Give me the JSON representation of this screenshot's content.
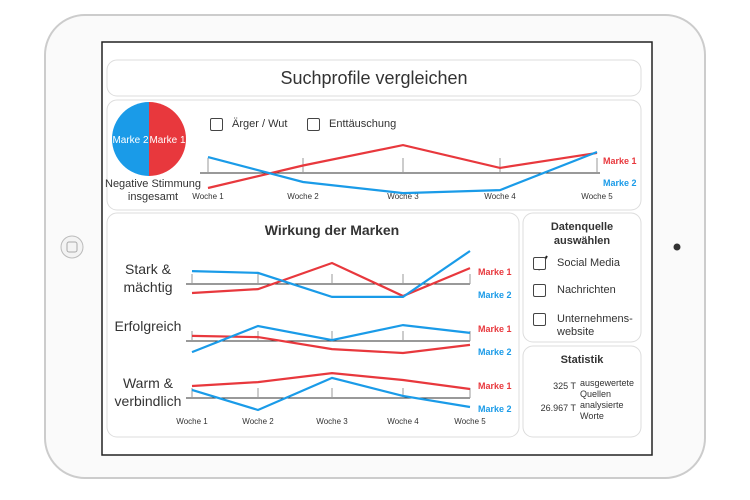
{
  "header": {
    "title": "Suchprofile vergleichen"
  },
  "top_panel": {
    "pie": {
      "type": "pie",
      "caption": "Negative Stimmung insgesamt",
      "slices": [
        {
          "name": "Marke 1",
          "value": 50,
          "color": "#e8383d"
        },
        {
          "name": "Marke 2",
          "value": 50,
          "color": "#1a9be8"
        }
      ]
    },
    "filters": [
      {
        "label": "Ärger / Wut",
        "checked": false
      },
      {
        "label": "Enttäuschung",
        "checked": false
      }
    ],
    "chart": {
      "type": "line",
      "categories": [
        "Woche 1",
        "Woche 2",
        "Woche 3",
        "Woche 4",
        "Woche 5"
      ],
      "ylim": [
        -1,
        1
      ],
      "series": [
        {
          "name": "Marke 1",
          "color": "#e8383d",
          "values": [
            -0.5,
            0.25,
            0.93,
            0.17,
            0.67
          ]
        },
        {
          "name": "Marke 2",
          "color": "#1a9be8",
          "values": [
            0.53,
            -0.3,
            -0.67,
            -0.57,
            0.7
          ]
        }
      ]
    }
  },
  "impact_panel": {
    "title": "Wirkung der Marken",
    "categories": [
      "Woche 1",
      "Woche 2",
      "Woche 3",
      "Woche 4",
      "Woche 5"
    ],
    "charts": [
      {
        "type": "line",
        "label": "Stark & mächtig",
        "ylim": [
          -1.2,
          1.2
        ],
        "series": [
          {
            "name": "Marke 1",
            "color": "#e8383d",
            "values": [
              -0.3,
              -0.17,
              0.7,
              -0.4,
              0.53
            ]
          },
          {
            "name": "Marke 2",
            "color": "#1a9be8",
            "values": [
              0.43,
              0.37,
              -0.43,
              -0.43,
              1.1
            ]
          }
        ]
      },
      {
        "type": "line",
        "label": "Erfolgreich",
        "ylim": [
          -1.2,
          1.2
        ],
        "series": [
          {
            "name": "Marke 1",
            "color": "#e8383d",
            "values": [
              0.17,
              0.13,
              -0.27,
              -0.4,
              -0.13
            ]
          },
          {
            "name": "Marke 2",
            "color": "#1a9be8",
            "values": [
              -0.37,
              0.5,
              0.03,
              0.53,
              0.27
            ]
          }
        ]
      },
      {
        "type": "line",
        "label": "Warm & verbindlich",
        "ylim": [
          -1.2,
          1.2
        ],
        "series": [
          {
            "name": "Marke 1",
            "color": "#e8383d",
            "values": [
              0.4,
              0.53,
              0.83,
              0.6,
              0.3
            ]
          },
          {
            "name": "Marke 2",
            "color": "#1a9be8",
            "values": [
              0.27,
              -0.4,
              0.67,
              0.07,
              -0.3
            ]
          }
        ]
      }
    ]
  },
  "source_panel": {
    "title": "Datenquelle auswählen",
    "options": [
      {
        "label": "Social Media",
        "checked": true
      },
      {
        "label": "Nachrichten",
        "checked": false
      },
      {
        "label": "Unternehmens-website",
        "checked": false
      }
    ]
  },
  "stats_panel": {
    "title": "Statistik",
    "rows": [
      {
        "value": "325 T",
        "label": "ausgewertete Quellen"
      },
      {
        "value": "26.967 T",
        "label": "analysierte Worte"
      }
    ]
  }
}
